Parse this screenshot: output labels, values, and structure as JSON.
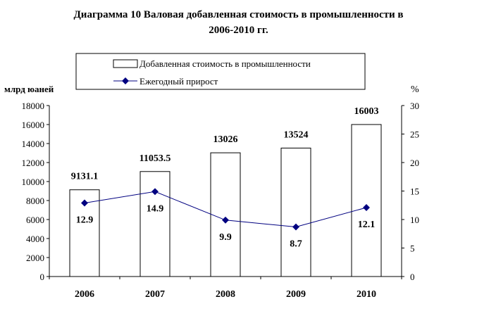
{
  "chart_data": {
    "type": "bar",
    "title_line1": "Диаграмма 10 Валовая добавленная стоимость в промышленности  в",
    "title_line2": "2006-2010 гг.",
    "categories": [
      "2006",
      "2007",
      "2008",
      "2009",
      "2010"
    ],
    "series": [
      {
        "name": "Добавленная стоимость в промышленности",
        "type": "bar",
        "axis": "left",
        "values": [
          9131.1,
          11053.5,
          13026,
          13524,
          16003
        ],
        "labels": [
          "9131.1",
          "11053.5",
          "13026",
          "13524",
          "16003"
        ]
      },
      {
        "name": "Ежегодный прирост",
        "type": "line",
        "axis": "right",
        "values": [
          12.9,
          14.9,
          9.9,
          8.7,
          12.1
        ],
        "labels": [
          "12.9",
          "14.9",
          "9.9",
          "8.7",
          "12.1"
        ]
      }
    ],
    "ylabel_left": "млрд юаней",
    "ylabel_right": "%",
    "ylim_left": [
      0,
      18000
    ],
    "ylim_right": [
      0,
      30
    ],
    "yticks_left": [
      "0",
      "2000",
      "4000",
      "6000",
      "8000",
      "10000",
      "12000",
      "14000",
      "16000",
      "18000"
    ],
    "yticks_right": [
      "0",
      "5",
      "10",
      "15",
      "20",
      "25",
      "30"
    ],
    "legend_position": "top-center",
    "grid": false,
    "colors": {
      "bar_fill": "#ffffff",
      "bar_stroke": "#000000",
      "line": "#000080",
      "marker": "#000080"
    }
  }
}
